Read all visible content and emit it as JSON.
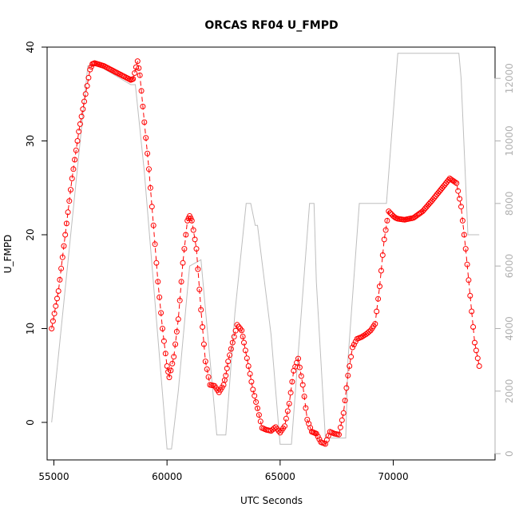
{
  "chart_data": {
    "type": "scatter",
    "title": "ORCAS RF04 U_FMPD",
    "xlabel": "UTC Seconds",
    "ylabel": "U_FMPD",
    "xlim": [
      54700,
      74500
    ],
    "ylim": [
      -4,
      40
    ],
    "y2lim": [
      -200,
      13000
    ],
    "x_ticks": [
      55000,
      60000,
      65000,
      70000
    ],
    "x_tick_labels": [
      "55000",
      "60000",
      "65000",
      "70000"
    ],
    "y_ticks": [
      0,
      10,
      20,
      30,
      40
    ],
    "y_tick_labels": [
      "0",
      "10",
      "20",
      "30",
      "40"
    ],
    "y2_ticks": [
      0,
      2000,
      4000,
      6000,
      8000,
      10000,
      12000
    ],
    "y2_tick_labels": [
      "0",
      "2000",
      "4000",
      "6000",
      "8000",
      "10000",
      "12000"
    ],
    "series": [
      {
        "role": "primary",
        "marker": "open-circle",
        "color": "#ff0000",
        "connected": "dashed-line",
        "x": [
          54900,
          55200,
          55500,
          55800,
          56100,
          56400,
          56600,
          56700,
          56800,
          57200,
          57600,
          58000,
          58400,
          58500,
          58700,
          58800,
          59000,
          59200,
          59400,
          59600,
          59800,
          60000,
          60100,
          60300,
          60500,
          60700,
          60900,
          61000,
          61100,
          61300,
          61500,
          61700,
          61900,
          62100,
          62300,
          62500,
          62600,
          62700,
          62900,
          63100,
          63300,
          63400,
          63600,
          63800,
          64000,
          64200,
          64400,
          64600,
          64800,
          65000,
          65200,
          65400,
          65600,
          65800,
          66000,
          66200,
          66400,
          66500,
          66600,
          66800,
          67000,
          67200,
          67400,
          67600,
          67800,
          68000,
          68200,
          68400,
          68600,
          68800,
          69000,
          69200,
          69400,
          69600,
          69800,
          70000,
          70100,
          70200,
          70500,
          70900,
          71300,
          71700,
          72100,
          72500,
          72800,
          73000,
          73200,
          73400,
          73600,
          73800
        ],
        "y": [
          10,
          14,
          20,
          26,
          31,
          35,
          37.6,
          38.2,
          38.3,
          38,
          37.5,
          37,
          36.5,
          36.6,
          38.5,
          37,
          32,
          27,
          21,
          15,
          10,
          6,
          4.8,
          7,
          11,
          17,
          21.5,
          22,
          21.5,
          18.5,
          12,
          6.5,
          4,
          3.9,
          3.2,
          4,
          5,
          6.5,
          8.5,
          10.4,
          9.8,
          8.5,
          6,
          3.5,
          1.5,
          -0.6,
          -0.8,
          -0.9,
          -0.5,
          -1.1,
          -0.4,
          2,
          5.5,
          6.8,
          4,
          0.3,
          -1,
          -1.1,
          -1.2,
          -2.1,
          -2.3,
          -1,
          -1.2,
          -1.3,
          1,
          5,
          8,
          8.9,
          9.1,
          9.4,
          9.8,
          10.5,
          14.5,
          19.5,
          22.5,
          22,
          21.8,
          21.7,
          21.6,
          21.8,
          22.5,
          23.6,
          24.8,
          26,
          25.5,
          23,
          18.5,
          13.5,
          8.5,
          6
        ]
      },
      {
        "role": "secondary-axis",
        "color": "#bebebe",
        "line": "solid",
        "x": [
          54900,
          56500,
          57000,
          58400,
          58600,
          59000,
          60000,
          60100,
          60200,
          60500,
          61000,
          61500,
          62200,
          62400,
          62600,
          63000,
          63500,
          63700,
          63900,
          64000,
          64600,
          65000,
          65300,
          65500,
          65800,
          66300,
          66500,
          66600,
          67000,
          67200,
          67700,
          67900,
          68000,
          68500,
          68700,
          69400,
          69700,
          70200,
          70300,
          70500,
          72000,
          72800,
          72900,
          73000,
          73300,
          73800
        ],
        "y": [
          1000,
          12400,
          12400,
          11800,
          11800,
          9000,
          150,
          150,
          150,
          2000,
          6000,
          6200,
          600,
          600,
          600,
          4500,
          8000,
          8000,
          7300,
          7300,
          3800,
          300,
          300,
          300,
          3200,
          8000,
          8000,
          5500,
          500,
          500,
          500,
          500,
          3000,
          8000,
          8000,
          8000,
          8000,
          12800,
          12800,
          12800,
          12800,
          12800,
          12800,
          12000,
          7000,
          7000
        ]
      }
    ]
  }
}
